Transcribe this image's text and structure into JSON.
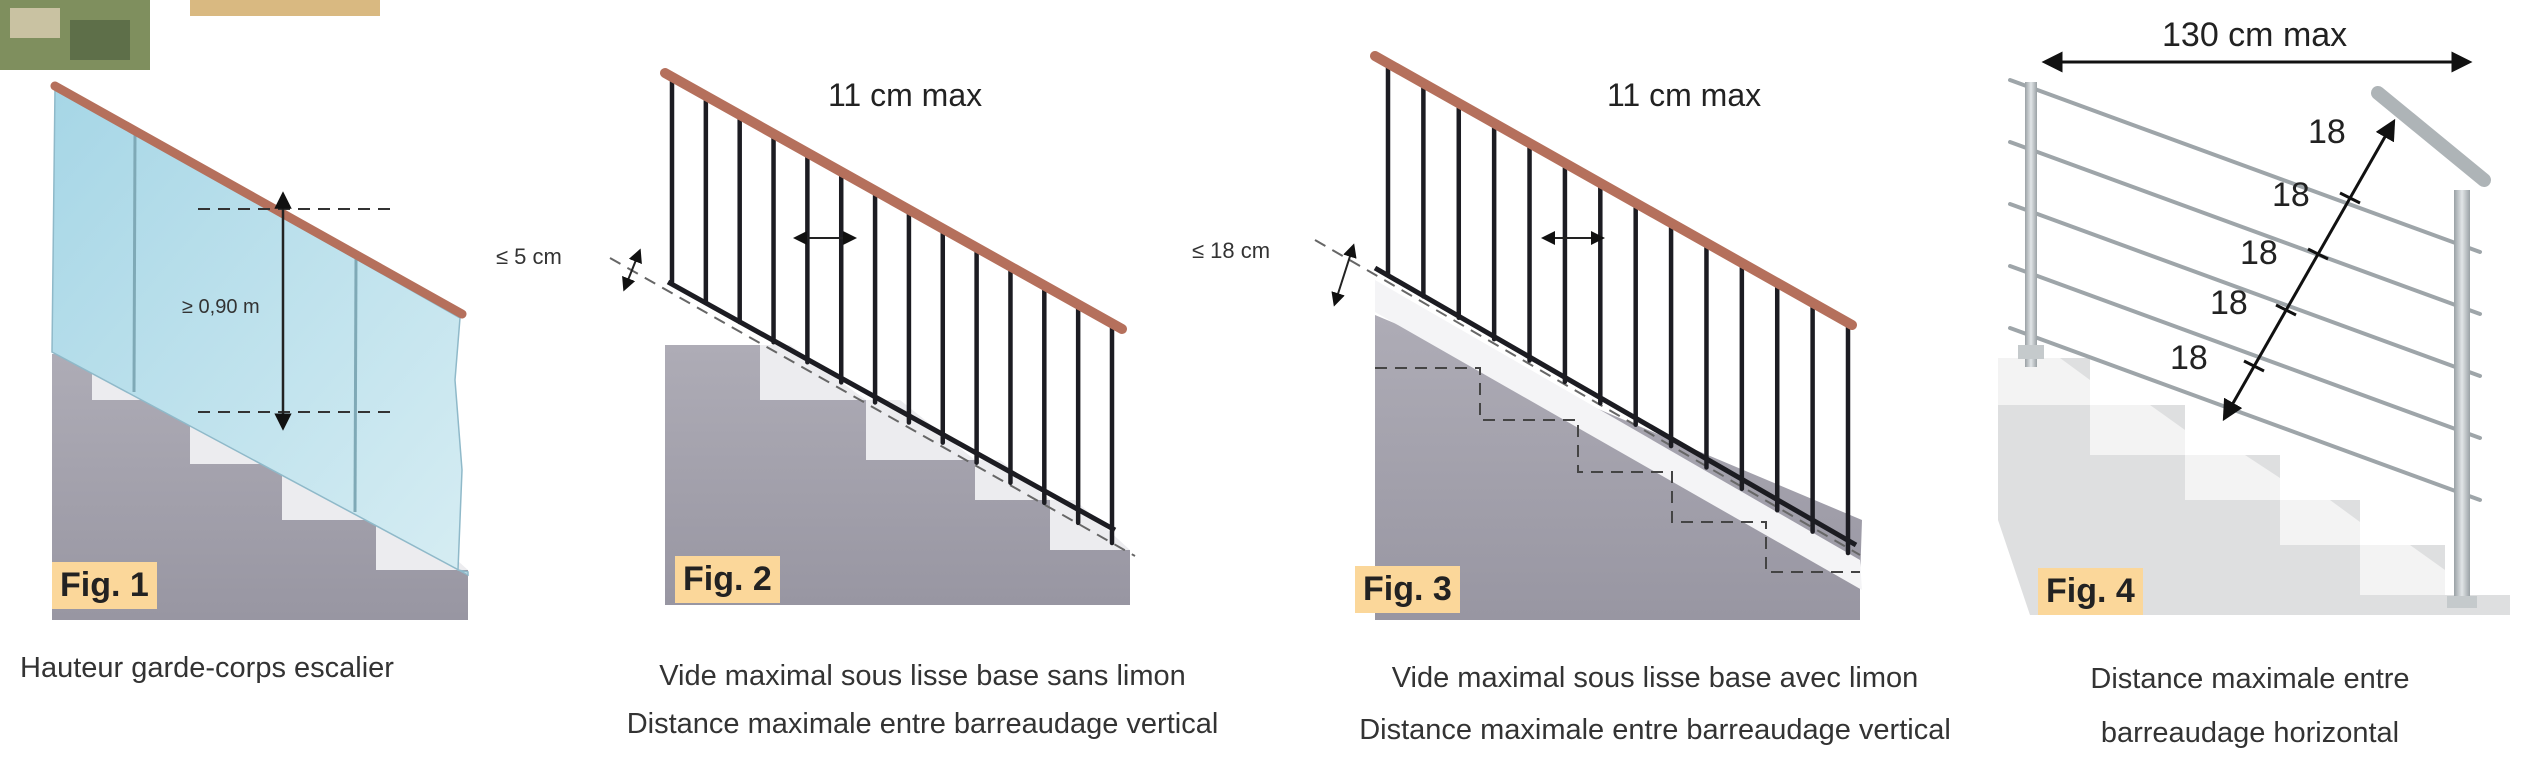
{
  "figures": [
    {
      "label": "Fig. 1",
      "caption_lines": [
        "Hauteur garde-corps escalier"
      ],
      "annotations": {
        "height": "≥ 0,90 m"
      }
    },
    {
      "label": "Fig. 2",
      "caption_lines": [
        "Vide maximal sous lisse base sans limon",
        "Distance maximale entre barreaudage vertical"
      ],
      "annotations": {
        "spacing": "11 cm max",
        "gap": "≤ 5 cm"
      }
    },
    {
      "label": "Fig. 3",
      "caption_lines": [
        "Vide maximal sous lisse base avec limon",
        "Distance maximale entre barreaudage vertical"
      ],
      "annotations": {
        "spacing": "11 cm max",
        "gap": "≤ 18 cm"
      }
    },
    {
      "label": "Fig. 4",
      "caption_lines": [
        "Distance maximale entre",
        "barreaudage horizontal"
      ],
      "annotations": {
        "width": "130 cm max",
        "bar_spacings": [
          "18",
          "18",
          "18",
          "18",
          "18"
        ]
      }
    }
  ],
  "colors": {
    "handrail": "#b5705c",
    "glass": "#bfe1ec",
    "stone": "#a3a1ac",
    "bars": "#1c1c22",
    "steel": "#b0b6ba",
    "label_bg": "#fbd79a"
  }
}
